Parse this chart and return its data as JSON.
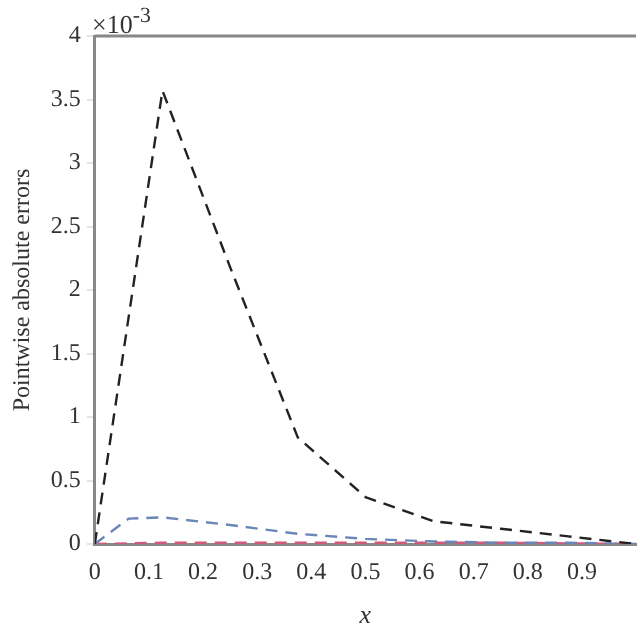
{
  "chart_data": {
    "type": "line",
    "xlabel": "x",
    "ylabel": "Pointwise absolute errors",
    "annotations": [
      "×10$^{-3}$"
    ],
    "line_style": "dashed",
    "marker": "none",
    "grid": false,
    "legend": false,
    "xlim": [
      0,
      1
    ],
    "xticks": [
      0,
      0.1,
      0.2,
      0.3,
      0.4,
      0.5,
      0.6,
      0.7,
      0.8,
      0.9
    ],
    "ylim": [
      0,
      4
    ],
    "yticks": [
      0,
      0.5,
      1,
      1.5,
      2,
      2.5,
      3,
      3.5,
      4
    ],
    "series": [
      {
        "color": "#222222",
        "x": [
          0,
          0.125,
          0.25,
          0.375,
          0.5,
          0.625,
          0.75,
          0.875,
          1
        ],
        "values": [
          0,
          3.57,
          2.18,
          0.84,
          0.37,
          0.18,
          0.12,
          0.06,
          0
        ]
      },
      {
        "color": "#6a86b8",
        "x": [
          0,
          0.0625,
          0.125,
          0.25,
          0.375,
          0.5,
          0.625,
          0.75,
          0.875,
          1
        ],
        "values": [
          0,
          0.2,
          0.21,
          0.15,
          0.08,
          0.04,
          0.02,
          0.01,
          0.01,
          0
        ]
      },
      {
        "color": "#d05a7a",
        "x": [
          0,
          0.125,
          0.25,
          0.5,
          0.75,
          1
        ],
        "values": [
          0,
          0.01,
          0.01,
          0.01,
          0.01,
          0
        ]
      }
    ]
  }
}
